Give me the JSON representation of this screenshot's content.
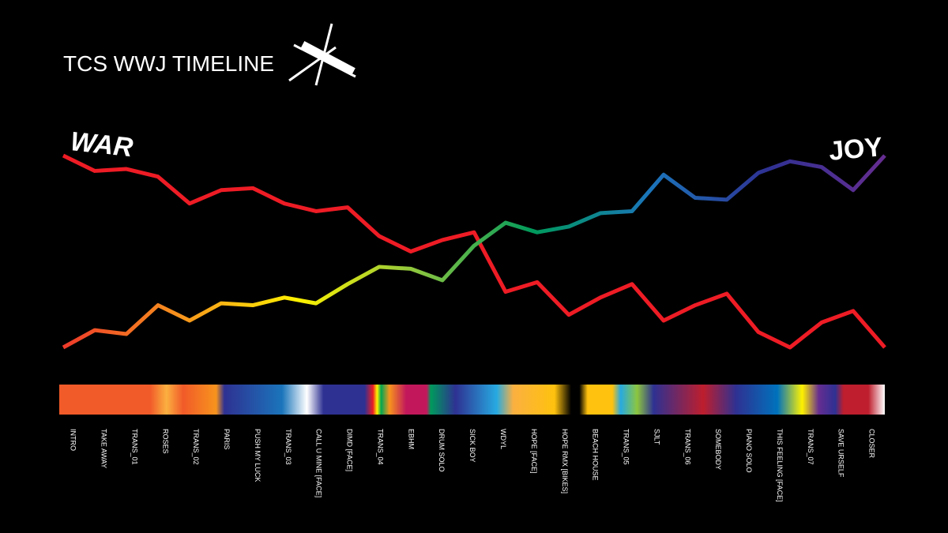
{
  "chart_data": {
    "type": "line",
    "title": "TCS WWJ TIMELINE",
    "categories": [
      "INTRO",
      "TAKE AWAY",
      "TRANS_01",
      "ROSES",
      "TRANS_02",
      "PARIS",
      "PUSH MY LUCK",
      "TRANS_03",
      "CALL U MINE [FACE]",
      "DIMD [FACE]",
      "TRANS_04",
      "EBHM",
      "DRUM SOLO",
      "SICK BOY",
      "WDYL",
      "HOPE [FACE]",
      "HOPE RMX [BIKES]",
      "BEACH HOUSE",
      "TRANS_05",
      "SJLT",
      "TRANS_06",
      "SOMEBODY",
      "PIANO SOLO",
      "THIS FEELING [FACE]",
      "TRANS_07",
      "SAVE URSELF",
      "CLOSER"
    ],
    "series": [
      {
        "name": "WAR",
        "color": "#ee1c25",
        "values": [
          100,
          92,
          93,
          89,
          75,
          82,
          83,
          75,
          71,
          73,
          58,
          50,
          56,
          60,
          29,
          34,
          17,
          26,
          33,
          14,
          22,
          28,
          8,
          0,
          13,
          19,
          0
        ]
      },
      {
        "name": "JOY",
        "colors": [
          "#ee3a2a",
          "#f7941d",
          "#fff200",
          "#8dc63f",
          "#009a5c",
          "#1b75bb",
          "#2e3192",
          "#662d91"
        ],
        "values": [
          0,
          9,
          7,
          22,
          14,
          23,
          22,
          26,
          23,
          33,
          42,
          41,
          35,
          53,
          65,
          60,
          63,
          70,
          71,
          90,
          78,
          77,
          91,
          97,
          94,
          82,
          100
        ]
      }
    ]
  }
}
